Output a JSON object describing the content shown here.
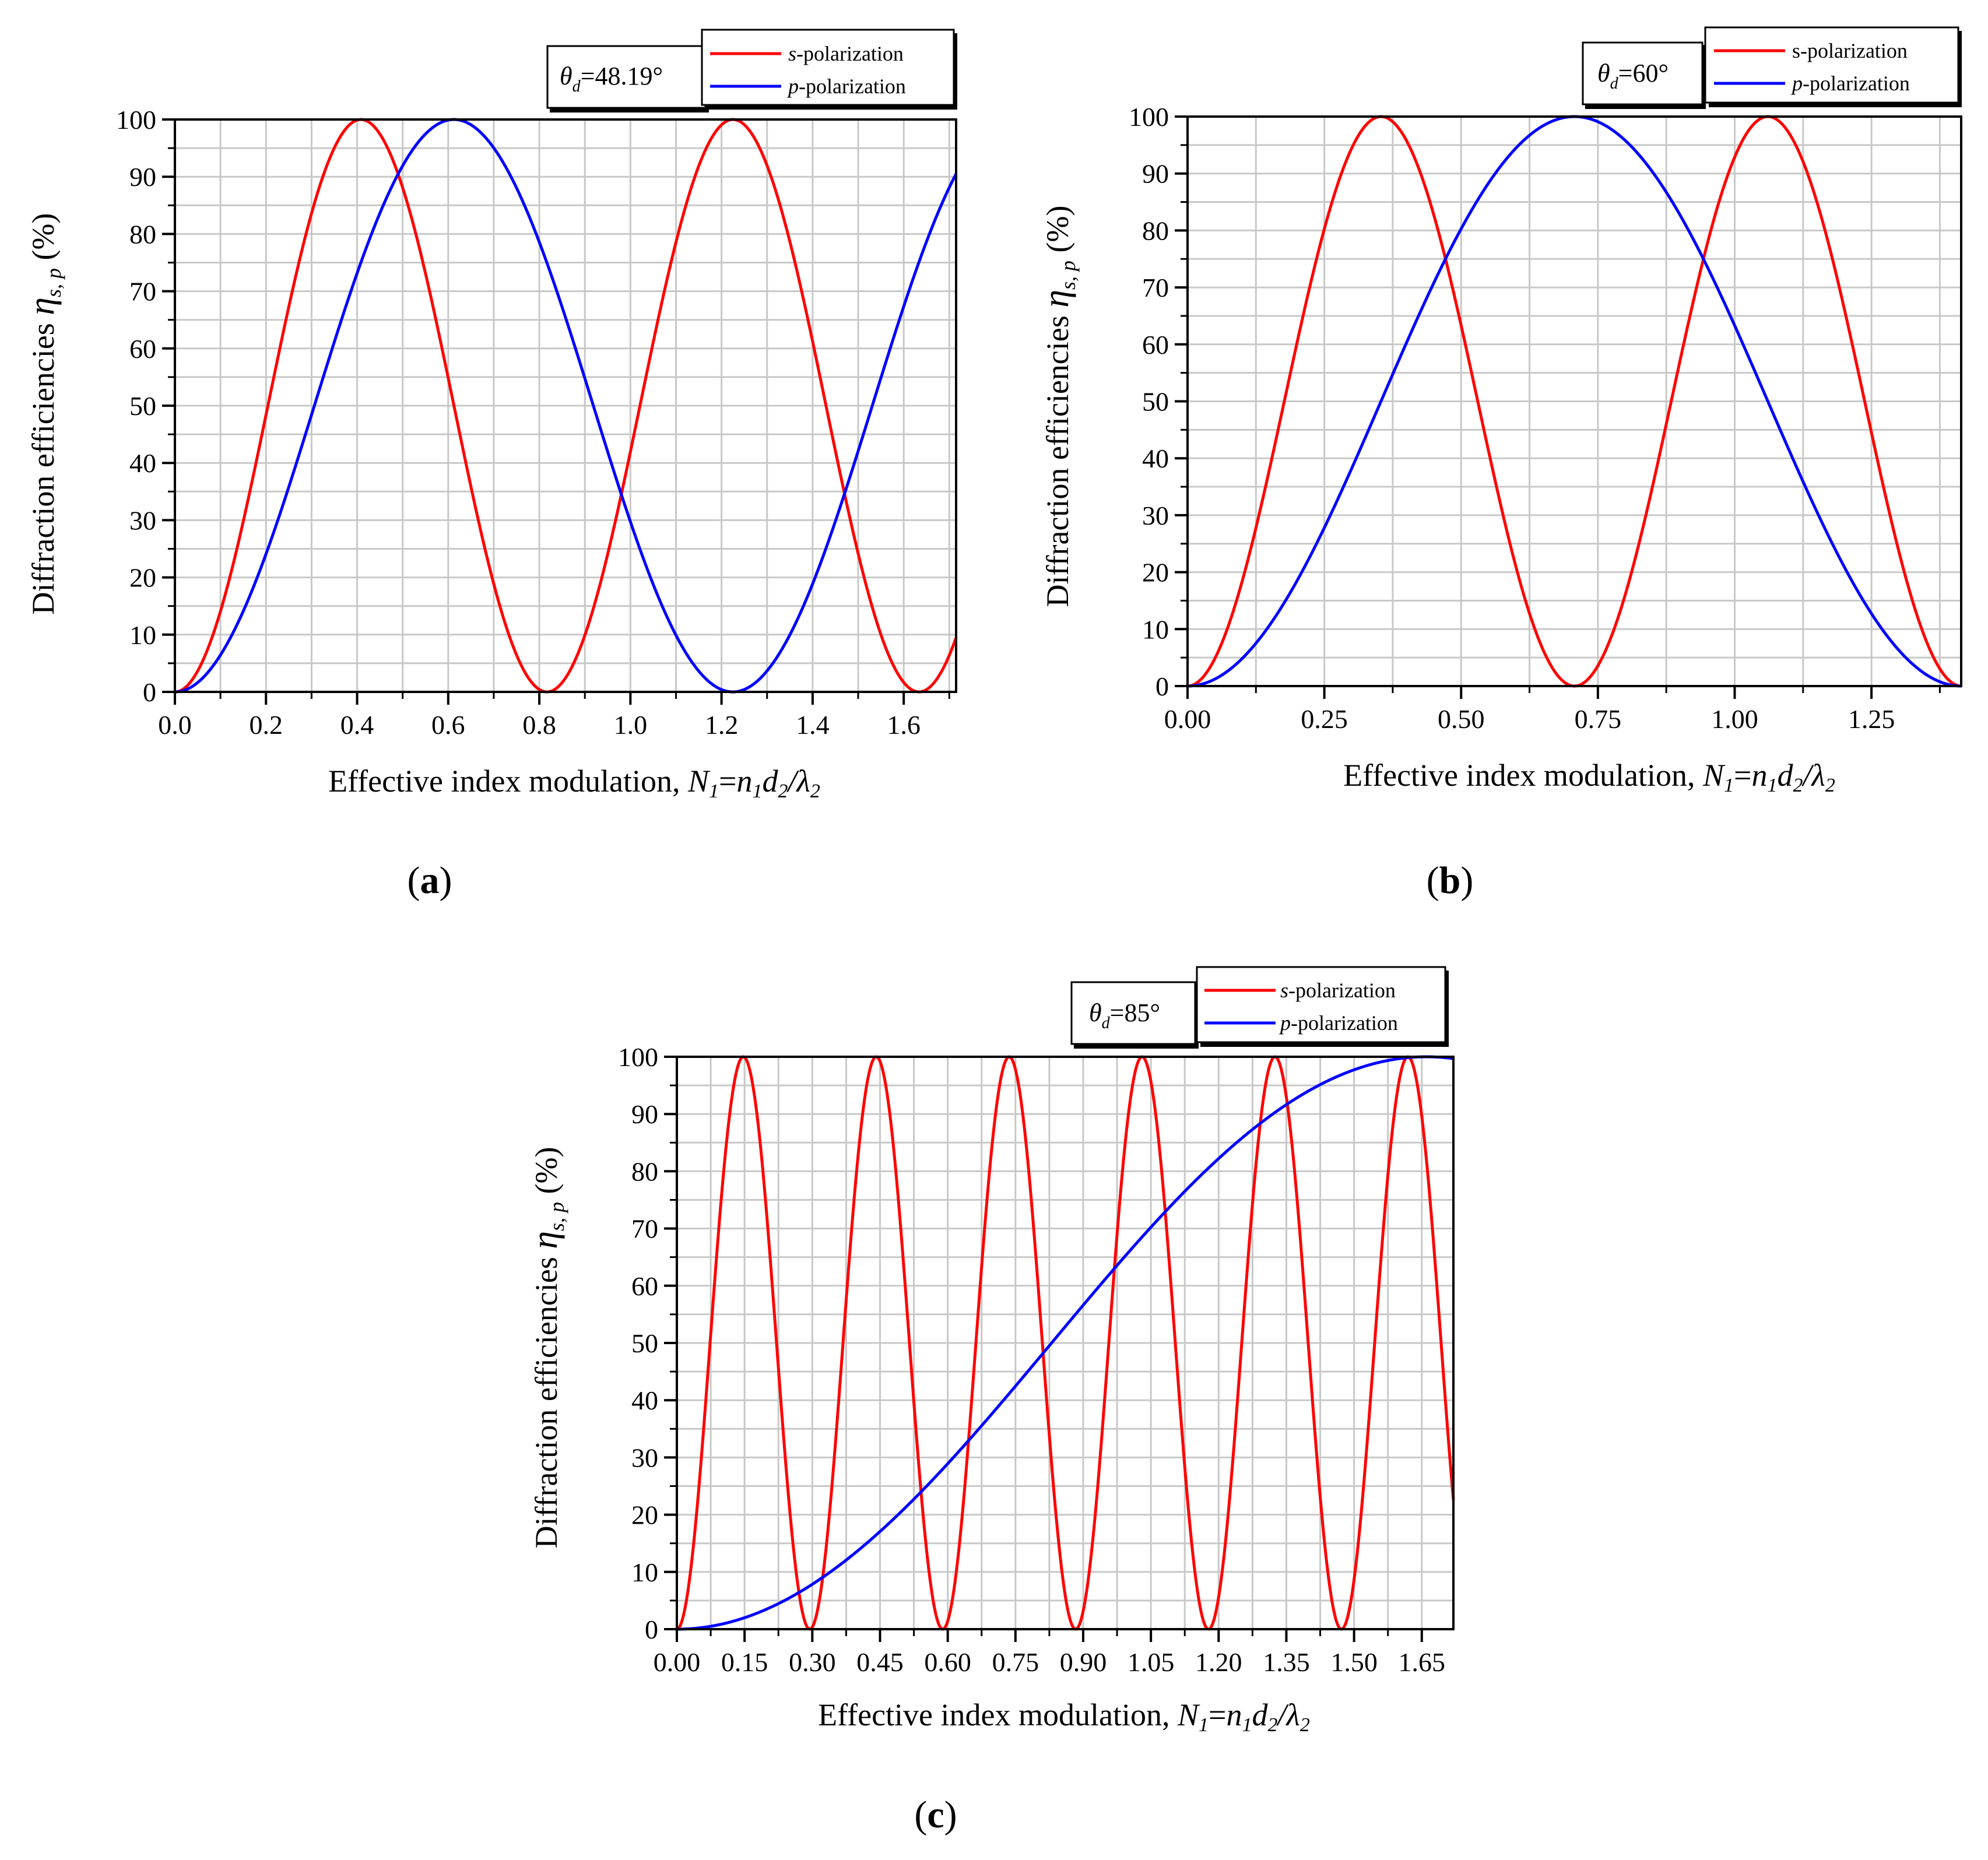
{
  "colors": {
    "s": "#ff0000",
    "p": "#0000ff"
  },
  "chart_data": [
    {
      "type": "line",
      "panel": "a",
      "caption_open": "(",
      "caption_letter": "a",
      "caption_close": ")",
      "angle_symbol": "θ",
      "angle_subscript": "d",
      "angle_value": "=48.19°",
      "legend": [
        {
          "italic": "s",
          "rest": "-polarization",
          "color": "#ff0000"
        },
        {
          "italic": "p",
          "rest": "-polarization",
          "color": "#0000ff"
        }
      ],
      "xlabel": "Effective index modulation, ",
      "xlabel_math": {
        "N": "N",
        "one": "1",
        "eq": "=",
        "n": "n",
        "d": "d",
        "two": "2",
        "slash": "/",
        "lambda": "λ"
      },
      "ylabel": "Diffraction efficiencies ",
      "ylabel_eta": "η",
      "ylabel_sub": "s, p",
      "ylabel_unit": " (%)",
      "xlim": [
        0,
        1.715
      ],
      "ylim": [
        0,
        100
      ],
      "xticks": [
        "0.0",
        "0.2",
        "0.4",
        "0.6",
        "0.8",
        "1.0",
        "1.2",
        "1.4",
        "1.6"
      ],
      "xtick_values": [
        0,
        0.2,
        0.4,
        0.6,
        0.8,
        1.0,
        1.2,
        1.4,
        1.6
      ],
      "xgrid_step": 0.1,
      "yticks": [
        "0",
        "10",
        "20",
        "30",
        "40",
        "50",
        "60",
        "70",
        "80",
        "90",
        "100"
      ],
      "ytick_values": [
        0,
        10,
        20,
        30,
        40,
        50,
        60,
        70,
        80,
        90,
        100
      ],
      "series": [
        {
          "name": "s-polarization",
          "formula": "sin^2(pi*N/(2*0.4084))",
          "color": "#ff0000"
        },
        {
          "name": "p-polarization",
          "formula": "sin^2(pi*N/(2*0.6124))",
          "color": "#0000ff"
        }
      ]
    },
    {
      "type": "line",
      "panel": "b",
      "caption_open": "(",
      "caption_letter": "b",
      "caption_close": ")",
      "angle_symbol": "θ",
      "angle_subscript": "d",
      "angle_value": "=60°",
      "legend": [
        {
          "italic": "",
          "rest": "s-polarization",
          "color": "#ff0000"
        },
        {
          "italic": "p",
          "rest": "-polarization",
          "color": "#0000ff"
        }
      ],
      "xlabel": "Effective index modulation, ",
      "xlabel_math": {
        "N": "N",
        "one": "1",
        "eq": "=",
        "n": "n",
        "d": "d",
        "two": "2",
        "slash": "/",
        "lambda": "λ"
      },
      "ylabel": "Diffraction efficiencies ",
      "ylabel_eta": "η",
      "ylabel_sub": "s, p",
      "ylabel_unit": " (%)",
      "xlim": [
        0,
        1.414
      ],
      "ylim": [
        0,
        100
      ],
      "xticks": [
        "0.00",
        "0.25",
        "0.50",
        "0.75",
        "1.00",
        "1.25"
      ],
      "xtick_values": [
        0,
        0.25,
        0.5,
        0.75,
        1.0,
        1.25
      ],
      "xgrid_step": 0.125,
      "yticks": [
        "0",
        "10",
        "20",
        "30",
        "40",
        "50",
        "60",
        "70",
        "80",
        "90",
        "100"
      ],
      "ytick_values": [
        0,
        10,
        20,
        30,
        40,
        50,
        60,
        70,
        80,
        90,
        100
      ],
      "series": [
        {
          "name": "s-polarization",
          "formula": "sin^2(pi*N/(2*0.3536))",
          "color": "#ff0000"
        },
        {
          "name": "p-polarization",
          "formula": "sin^2(pi*N/(2*0.7071))",
          "color": "#0000ff"
        }
      ]
    },
    {
      "type": "line",
      "panel": "c",
      "caption_open": "(",
      "caption_letter": "c",
      "caption_close": ")",
      "angle_symbol": "θ",
      "angle_subscript": "d",
      "angle_value": "=85°",
      "legend": [
        {
          "italic": "s",
          "rest": "-polarization",
          "color": "#ff0000"
        },
        {
          "italic": "p",
          "rest": "-polarization",
          "color": "#0000ff"
        }
      ],
      "xlabel": "Effective index modulation, ",
      "xlabel_math": {
        "N": "N",
        "one": "1",
        "eq": "=",
        "n": "n",
        "d": "d",
        "two": "2",
        "slash": "/",
        "lambda": "λ"
      },
      "ylabel": "Diffraction efficiencies ",
      "ylabel_eta": "η",
      "ylabel_sub": "s, p",
      "ylabel_unit": " (%)",
      "xlim": [
        0,
        1.72
      ],
      "ylim": [
        0,
        100
      ],
      "xticks": [
        "0.00",
        "0.15",
        "0.30",
        "0.45",
        "0.60",
        "0.75",
        "0.90",
        "1.05",
        "1.20",
        "1.35",
        "1.50",
        "1.65"
      ],
      "xtick_values": [
        0,
        0.15,
        0.3,
        0.45,
        0.6,
        0.75,
        0.9,
        1.05,
        1.2,
        1.35,
        1.5,
        1.65
      ],
      "xgrid_step": 0.075,
      "yticks": [
        "0",
        "10",
        "20",
        "30",
        "40",
        "50",
        "60",
        "70",
        "80",
        "90",
        "100"
      ],
      "ytick_values": [
        0,
        10,
        20,
        30,
        40,
        50,
        60,
        70,
        80,
        90,
        100
      ],
      "series": [
        {
          "name": "s-polarization",
          "formula": "sin^2(pi*N/(2*0.1472))",
          "color": "#ff0000"
        },
        {
          "name": "p-polarization",
          "formula": "sin^2(pi*N/(2*1.66))",
          "color": "#0000ff"
        }
      ]
    }
  ]
}
